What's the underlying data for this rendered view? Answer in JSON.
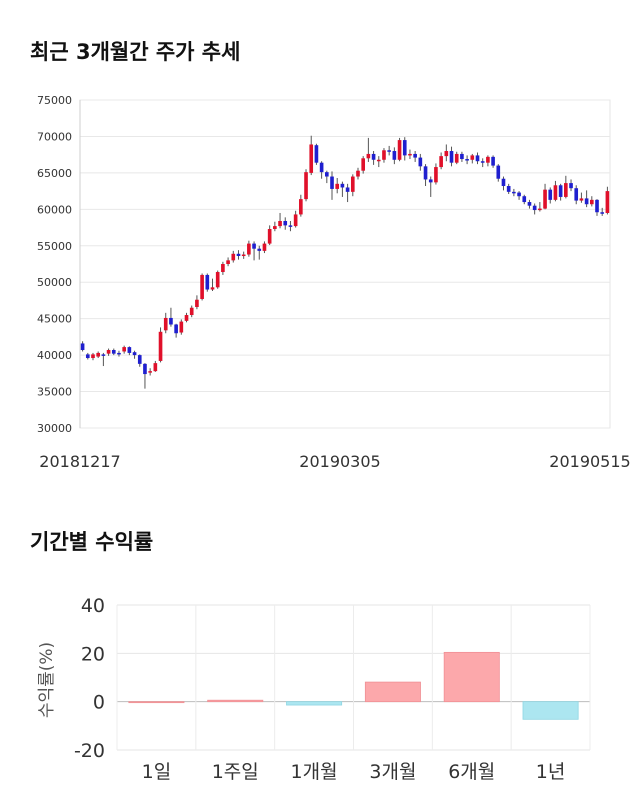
{
  "section1": {
    "title": "최근 3개월간 주가 추세"
  },
  "section2": {
    "title": "기간별 수익률"
  },
  "chart_data": [
    {
      "type": "candlestick",
      "ylim": [
        30000,
        75000
      ],
      "yticks": [
        "75000",
        "70000",
        "65000",
        "60000",
        "55000",
        "50000",
        "45000",
        "40000",
        "35000",
        "30000"
      ],
      "xlabels": [
        "20181217",
        "20190305",
        "20190515"
      ],
      "colors": {
        "up": "#e0102a",
        "down": "#1f1fcf",
        "wick": "#555555"
      },
      "candles": [
        [
          41600,
          40700,
          41900,
          40500
        ],
        [
          40100,
          39600,
          40300,
          39400
        ],
        [
          39600,
          40100,
          40300,
          39300
        ],
        [
          39800,
          40300,
          40500,
          39600
        ],
        [
          40100,
          39900,
          40300,
          38500
        ],
        [
          40200,
          40700,
          40900,
          39900
        ],
        [
          40700,
          40200,
          40900,
          40000
        ],
        [
          40300,
          40200,
          40600,
          39800
        ],
        [
          40500,
          41100,
          41300,
          40200
        ],
        [
          41100,
          40300,
          41200,
          40000
        ],
        [
          40400,
          40000,
          40600,
          39500
        ],
        [
          40000,
          38800,
          40100,
          38400
        ],
        [
          38800,
          37400,
          38900,
          35400
        ],
        [
          37600,
          37800,
          38200,
          37200
        ],
        [
          37800,
          38900,
          39200,
          37700
        ],
        [
          39200,
          43200,
          43800,
          39000
        ],
        [
          43400,
          45100,
          45800,
          43000
        ],
        [
          45100,
          44200,
          46500,
          43900
        ],
        [
          44200,
          43000,
          44300,
          42400
        ],
        [
          43100,
          44600,
          44900,
          42800
        ],
        [
          44700,
          45500,
          45800,
          44500
        ],
        [
          45500,
          46500,
          46800,
          45200
        ],
        [
          46600,
          47600,
          48200,
          46300
        ],
        [
          47700,
          51000,
          51200,
          47500
        ],
        [
          51000,
          49000,
          51200,
          48700
        ],
        [
          49000,
          49300,
          50500,
          48800
        ],
        [
          49300,
          51400,
          51600,
          49100
        ],
        [
          51400,
          52500,
          52800,
          51000
        ],
        [
          52500,
          53000,
          53400,
          52200
        ],
        [
          53000,
          53900,
          54300,
          52700
        ],
        [
          53900,
          53600,
          54400,
          53100
        ],
        [
          53600,
          53800,
          54200,
          53200
        ],
        [
          53800,
          55300,
          55700,
          53500
        ],
        [
          55300,
          54600,
          55600,
          53000
        ],
        [
          54600,
          54300,
          55000,
          53100
        ],
        [
          54300,
          55300,
          55600,
          54000
        ],
        [
          55300,
          57300,
          57800,
          55100
        ],
        [
          57300,
          57700,
          58300,
          57000
        ],
        [
          57700,
          58400,
          59500,
          57400
        ],
        [
          58400,
          57800,
          58900,
          57200
        ],
        [
          57800,
          57700,
          58400,
          57000
        ],
        [
          57700,
          59300,
          59800,
          57500
        ],
        [
          59300,
          61400,
          62000,
          59000
        ],
        [
          61400,
          65100,
          65500,
          61100
        ],
        [
          65000,
          68900,
          70100,
          64700
        ],
        [
          68800,
          66400,
          69000,
          66100
        ],
        [
          66400,
          65100,
          66600,
          64200
        ],
        [
          65100,
          64500,
          65300,
          63600
        ],
        [
          64500,
          62800,
          65200,
          61300
        ],
        [
          62800,
          63500,
          64300,
          62200
        ],
        [
          63500,
          63000,
          63800,
          61700
        ],
        [
          63000,
          62400,
          63500,
          61000
        ],
        [
          62400,
          64500,
          64800,
          61800
        ],
        [
          64500,
          65300,
          65700,
          64100
        ],
        [
          65300,
          67000,
          67300,
          64900
        ],
        [
          67000,
          67600,
          69800,
          66500
        ],
        [
          67600,
          66800,
          68000,
          66100
        ],
        [
          66800,
          66800,
          67300,
          65800
        ],
        [
          66800,
          68100,
          68400,
          66400
        ],
        [
          68100,
          68000,
          68700,
          67400
        ],
        [
          68000,
          66800,
          68500,
          66200
        ],
        [
          66800,
          69500,
          69800,
          66600
        ],
        [
          69500,
          67400,
          69900,
          66700
        ],
        [
          67400,
          67600,
          68200,
          66900
        ],
        [
          67600,
          67100,
          68000,
          66500
        ],
        [
          67100,
          65900,
          67600,
          65300
        ],
        [
          65900,
          64100,
          66200,
          63200
        ],
        [
          64100,
          63700,
          64500,
          61700
        ],
        [
          63700,
          65800,
          66300,
          63400
        ],
        [
          65800,
          67300,
          67800,
          65500
        ],
        [
          67300,
          68000,
          68900,
          66600
        ],
        [
          68000,
          66400,
          68600,
          65900
        ],
        [
          66400,
          67600,
          67900,
          66200
        ],
        [
          67600,
          66900,
          67900,
          66500
        ],
        [
          66900,
          66800,
          67400,
          66200
        ],
        [
          66800,
          67400,
          67600,
          66300
        ],
        [
          67400,
          66600,
          67800,
          66200
        ],
        [
          66600,
          66400,
          67000,
          65800
        ],
        [
          66400,
          67200,
          67400,
          65900
        ],
        [
          67200,
          66000,
          67400,
          65700
        ],
        [
          66000,
          64200,
          66200,
          63800
        ],
        [
          64200,
          63200,
          64500,
          62600
        ],
        [
          63200,
          62400,
          63500,
          62100
        ],
        [
          62400,
          62300,
          62800,
          61800
        ],
        [
          62300,
          61800,
          62500,
          61300
        ],
        [
          61800,
          61000,
          62000,
          60700
        ],
        [
          61000,
          60500,
          61300,
          60100
        ],
        [
          60500,
          59900,
          60800,
          59300
        ],
        [
          59900,
          60100,
          61000,
          59700
        ],
        [
          60100,
          62700,
          63500,
          60000
        ],
        [
          62700,
          61300,
          63000,
          60800
        ],
        [
          61300,
          63300,
          63900,
          61100
        ],
        [
          63300,
          61700,
          63500,
          61200
        ],
        [
          61700,
          63600,
          64600,
          61500
        ],
        [
          63600,
          62900,
          64100,
          62500
        ],
        [
          62900,
          61200,
          63300,
          60700
        ],
        [
          61200,
          61500,
          62300,
          60900
        ],
        [
          61500,
          60700,
          62600,
          60300
        ],
        [
          60700,
          61300,
          61800,
          60400
        ],
        [
          61300,
          59600,
          61400,
          59100
        ],
        [
          59600,
          59500,
          60200,
          59100
        ],
        [
          59500,
          62500,
          63100,
          59300
        ]
      ]
    },
    {
      "type": "bar",
      "ylabel": "수익률(%)",
      "ylim": [
        -20,
        40
      ],
      "yticks": [
        40,
        20,
        0,
        -20
      ],
      "categories": [
        "1일",
        "1주일",
        "1개월",
        "3개월",
        "6개월",
        "1년"
      ],
      "values": [
        0,
        0.6,
        -1.4,
        8.1,
        20.4,
        -7.3
      ],
      "colors": {
        "positive": "#fca8ab",
        "negative": "#ace6f0"
      }
    }
  ]
}
